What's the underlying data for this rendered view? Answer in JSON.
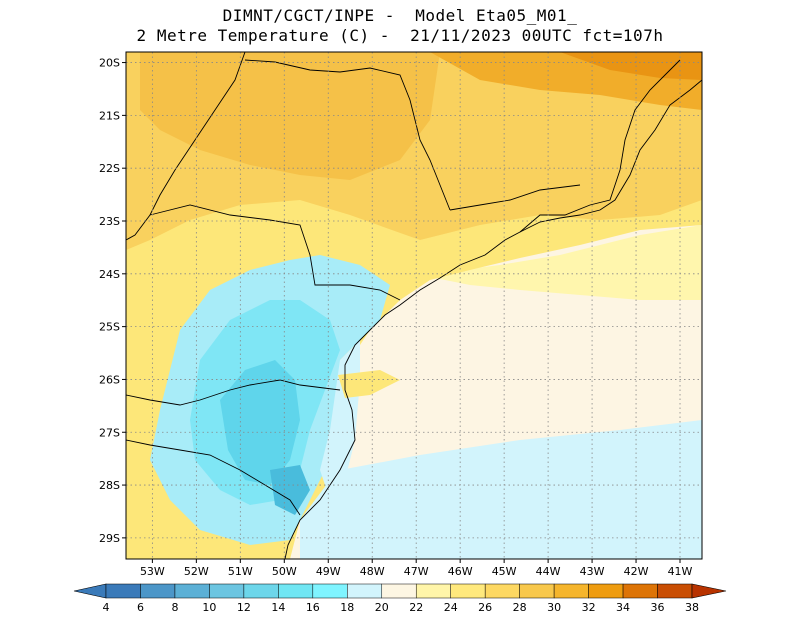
{
  "header": {
    "title_line1": "DIMNT/CGCT/INPE -  Model Eta05_M01_",
    "title_line2": "2 Metre Temperature (C) -  21/11/2023 00UTC fct=107h"
  },
  "map": {
    "lon_range": [
      -53.6,
      -40.5
    ],
    "lat_range": [
      -29.4,
      -19.8
    ],
    "lat_ticks": [
      "20S",
      "21S",
      "22S",
      "23S",
      "24S",
      "25S",
      "26S",
      "27S",
      "28S",
      "29S"
    ],
    "lat_values": [
      -20,
      -21,
      -22,
      -23,
      -24,
      -25,
      -26,
      -27,
      -28,
      -29
    ],
    "lon_ticks": [
      "53W",
      "52W",
      "51W",
      "50W",
      "49W",
      "48W",
      "47W",
      "46W",
      "45W",
      "44W",
      "43W",
      "42W",
      "41W"
    ],
    "lon_values": [
      -53,
      -52,
      -51,
      -50,
      -49,
      -48,
      -47,
      -46,
      -45,
      -44,
      -43,
      -42,
      -41
    ],
    "gridlines": true,
    "ocean_note_color": "#d6f3fb"
  },
  "colorbar": {
    "labels": [
      "4",
      "6",
      "8",
      "10",
      "12",
      "14",
      "16",
      "18",
      "20",
      "22",
      "24",
      "26",
      "28",
      "30",
      "32",
      "34",
      "36",
      "38"
    ],
    "colors": [
      "#3a7ab9",
      "#4c96c8",
      "#5cb0d6",
      "#6cc5e1",
      "#6dd6ea",
      "#70e6f3",
      "#7ff4ff",
      "#d2f4fc",
      "#fdf6e3",
      "#fff5a9",
      "#ffe97d",
      "#fdd862",
      "#f8c84c",
      "#f5b52c",
      "#ee9c10",
      "#dd7406",
      "#c94e03",
      "#b83300"
    ]
  }
}
